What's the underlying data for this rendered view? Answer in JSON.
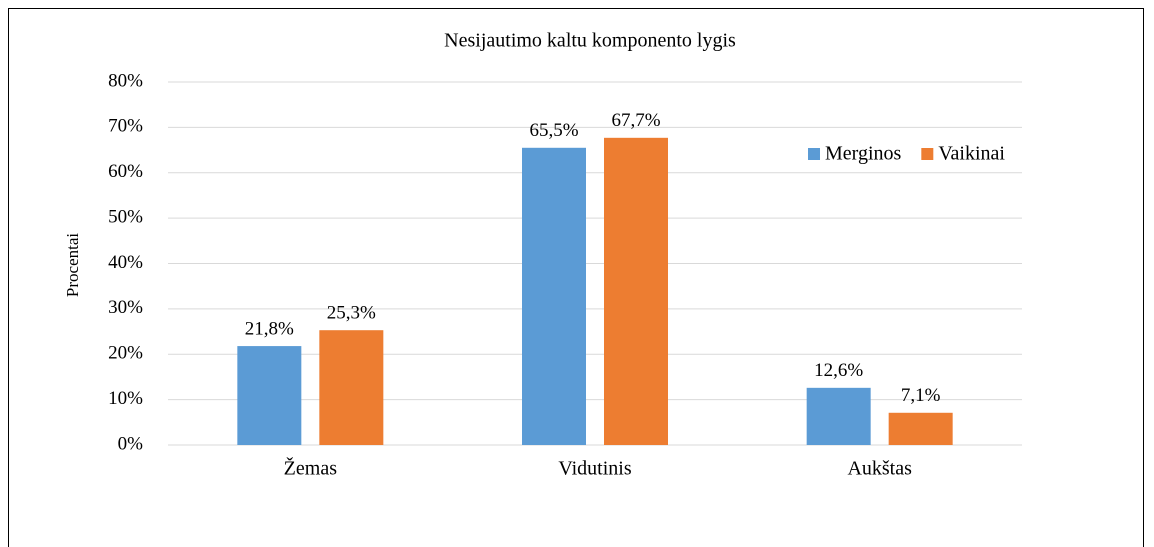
{
  "chart_data": {
    "type": "bar",
    "title": "Nesijautimo kaltu komponento lygis",
    "y_label": "Procentai",
    "categories": [
      "Žemas",
      "Vidutinis",
      "Aukštas"
    ],
    "series": [
      {
        "name": "Merginos",
        "color": "#5b9bd5",
        "values": [
          21.8,
          65.5,
          12.6
        ],
        "value_labels": [
          "21,8%",
          "65,5%",
          "12,6%"
        ]
      },
      {
        "name": "Vaikinai",
        "color": "#ed7d31",
        "values": [
          25.3,
          67.7,
          7.1
        ],
        "value_labels": [
          "25,3%",
          "67,7%",
          "7,1%"
        ]
      }
    ],
    "ylim": [
      0,
      80
    ],
    "yticks": [
      {
        "value": 0,
        "label": "0%"
      },
      {
        "value": 10,
        "label": "10%"
      },
      {
        "value": 20,
        "label": "20%"
      },
      {
        "value": 30,
        "label": "30%"
      },
      {
        "value": 40,
        "label": "40%"
      },
      {
        "value": 50,
        "label": "50%"
      },
      {
        "value": 60,
        "label": "60%"
      },
      {
        "value": 70,
        "label": "70%"
      },
      {
        "value": 80,
        "label": "80%"
      }
    ],
    "grid": true,
    "legend": "right"
  }
}
